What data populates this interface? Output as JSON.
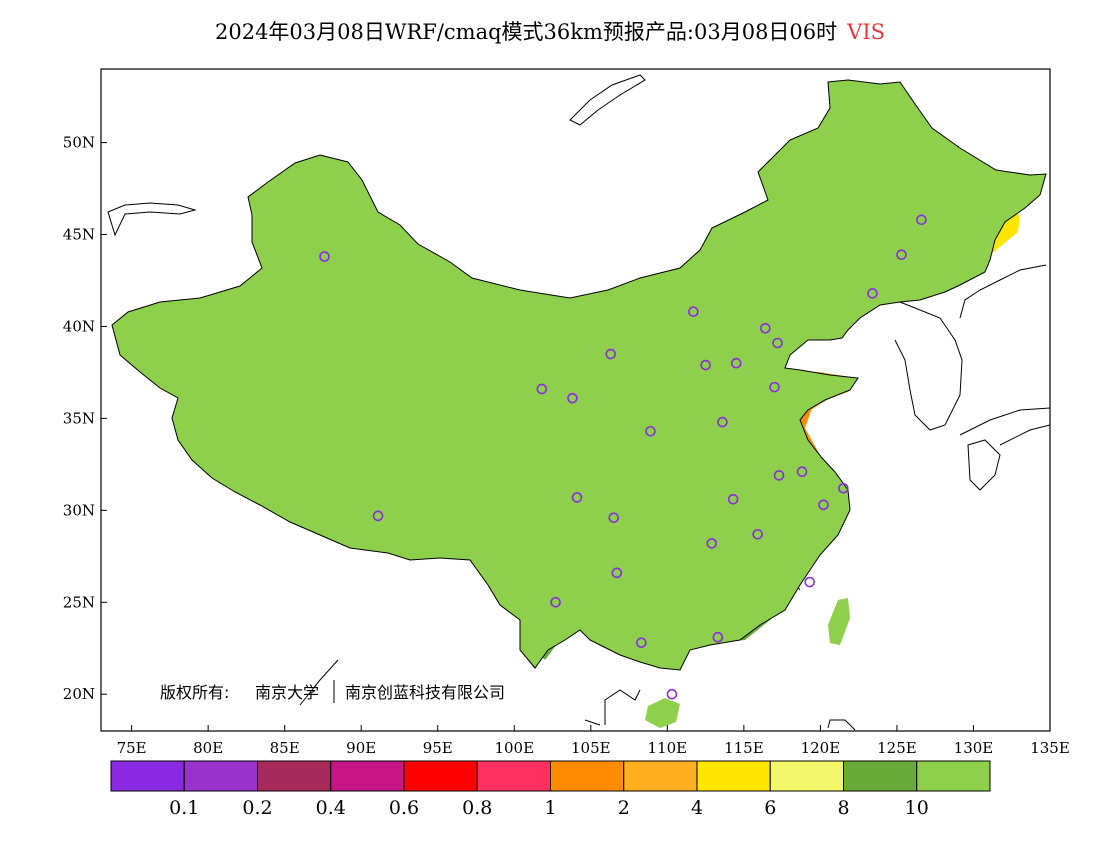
{
  "title": {
    "prefix": "2024年03月08日WRF/cmaq模式36km预报产品:03月08日06时",
    "variable": "VIS",
    "variable_color": "#e8383d"
  },
  "copyright": {
    "owner_prefix": "版权所有:",
    "owner_1": "南京大学",
    "owner_2": "南京创蓝科技有限公司"
  },
  "axes": {
    "lon_min": 73,
    "lon_max": 135,
    "lat_min": 18,
    "lat_max": 54,
    "lon_ticks": [
      "75E",
      "80E",
      "85E",
      "90E",
      "95E",
      "100E",
      "105E",
      "110E",
      "115E",
      "120E",
      "125E",
      "130E",
      "135E"
    ],
    "lon_tick_values": [
      75,
      80,
      85,
      90,
      95,
      100,
      105,
      110,
      115,
      120,
      125,
      130,
      135
    ],
    "lat_ticks": [
      "20N",
      "25N",
      "30N",
      "35N",
      "40N",
      "45N",
      "50N"
    ],
    "lat_tick_values": [
      20,
      25,
      30,
      35,
      40,
      45,
      50
    ]
  },
  "colorbar": {
    "colors": [
      "#8a2be2",
      "#9932cc",
      "#a52a5a",
      "#c71585",
      "#ff0000",
      "#ff3060",
      "#ff8c00",
      "#ffb020",
      "#ffe600",
      "#f3f86a",
      "#6aaa38",
      "#8ecf4c"
    ],
    "labels": [
      "0.1",
      "0.2",
      "0.4",
      "0.6",
      "0.8",
      "1",
      "2",
      "4",
      "6",
      "8",
      "10"
    ]
  },
  "colors": {
    "land_vis_high": "#8ecf4c",
    "vis_8_10": "#6aaa38",
    "vis_6_8": "#f3f86a",
    "vis_4_6": "#ffe600",
    "vis_2_4": "#ffb020",
    "vis_1_2": "#ff8c00",
    "station_marker": "#8a2be2"
  },
  "stations": [
    {
      "lon": 87.6,
      "lat": 43.8
    },
    {
      "lon": 91.1,
      "lat": 29.7
    },
    {
      "lon": 101.8,
      "lat": 36.6
    },
    {
      "lon": 103.8,
      "lat": 36.1
    },
    {
      "lon": 106.3,
      "lat": 38.5
    },
    {
      "lon": 111.7,
      "lat": 40.8
    },
    {
      "lon": 112.5,
      "lat": 37.9
    },
    {
      "lon": 114.5,
      "lat": 38.0
    },
    {
      "lon": 116.4,
      "lat": 39.9
    },
    {
      "lon": 117.2,
      "lat": 39.1
    },
    {
      "lon": 117.0,
      "lat": 36.7
    },
    {
      "lon": 113.6,
      "lat": 34.8
    },
    {
      "lon": 108.9,
      "lat": 34.3
    },
    {
      "lon": 104.1,
      "lat": 30.7
    },
    {
      "lon": 106.5,
      "lat": 29.6
    },
    {
      "lon": 106.7,
      "lat": 26.6
    },
    {
      "lon": 102.7,
      "lat": 25.0
    },
    {
      "lon": 108.3,
      "lat": 22.8
    },
    {
      "lon": 113.3,
      "lat": 23.1
    },
    {
      "lon": 110.3,
      "lat": 20.0
    },
    {
      "lon": 112.9,
      "lat": 28.2
    },
    {
      "lon": 114.3,
      "lat": 30.6
    },
    {
      "lon": 115.9,
      "lat": 28.7
    },
    {
      "lon": 117.3,
      "lat": 31.9
    },
    {
      "lon": 118.8,
      "lat": 32.1
    },
    {
      "lon": 120.2,
      "lat": 30.3
    },
    {
      "lon": 121.5,
      "lat": 31.2
    },
    {
      "lon": 119.3,
      "lat": 26.1
    },
    {
      "lon": 123.4,
      "lat": 41.8
    },
    {
      "lon": 125.3,
      "lat": 43.9
    },
    {
      "lon": 126.6,
      "lat": 45.8
    }
  ]
}
